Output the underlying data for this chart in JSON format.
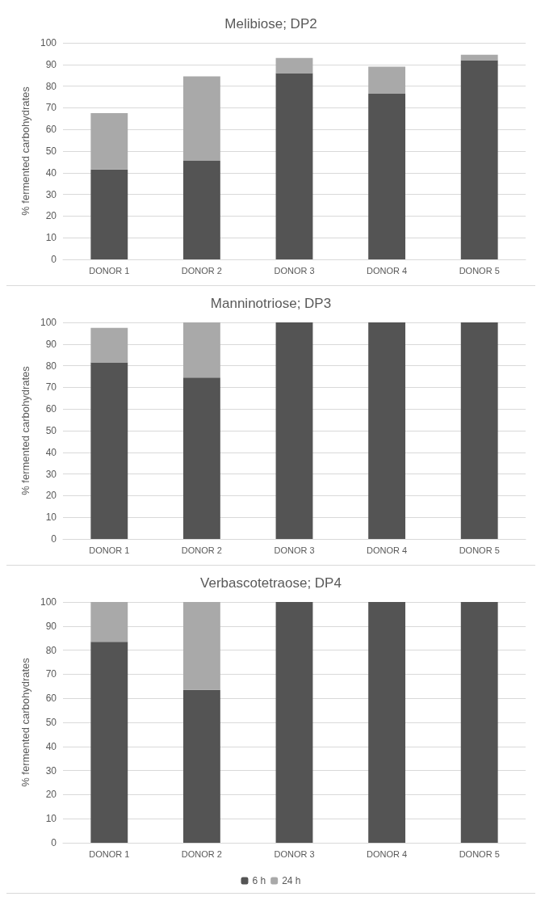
{
  "chart_data": [
    {
      "type": "bar",
      "title": "Melibiose; DP2",
      "ylabel": "% fermented carbohydrates",
      "categories": [
        "DONOR 1",
        "DONOR 2",
        "DONOR 3",
        "DONOR 4",
        "DONOR 5"
      ],
      "stacked": true,
      "ylim": [
        0,
        100
      ],
      "yticks": [
        0,
        10,
        20,
        30,
        40,
        50,
        60,
        70,
        80,
        90,
        100
      ],
      "grid": "y",
      "legend": false,
      "series": [
        {
          "color": "#545454",
          "values": [
            41.5,
            45.5,
            86,
            76.5,
            92
          ]
        },
        {
          "color": "#a9a9a9",
          "values": [
            26,
            39,
            7,
            12.5,
            2.5
          ]
        }
      ]
    },
    {
      "type": "bar",
      "title": "Manninotriose; DP3",
      "ylabel": "% fermented carbohydrates",
      "categories": [
        "DONOR 1",
        "DONOR 2",
        "DONOR 3",
        "DONOR 4",
        "DONOR 5"
      ],
      "stacked": true,
      "ylim": [
        0,
        100
      ],
      "yticks": [
        0,
        10,
        20,
        30,
        40,
        50,
        60,
        70,
        80,
        90,
        100
      ],
      "grid": "y",
      "legend": false,
      "series": [
        {
          "color": "#545454",
          "values": [
            81.5,
            74.5,
            100,
            100,
            100
          ]
        },
        {
          "color": "#a9a9a9",
          "values": [
            16,
            25.5,
            0,
            0,
            0
          ]
        }
      ]
    },
    {
      "type": "bar",
      "title": "Verbascotetraose; DP4",
      "ylabel": "% fermented carbohydrates",
      "categories": [
        "DONOR 1",
        "DONOR 2",
        "DONOR 3",
        "DONOR 4",
        "DONOR 5"
      ],
      "stacked": true,
      "ylim": [
        0,
        100
      ],
      "yticks": [
        0,
        10,
        20,
        30,
        40,
        50,
        60,
        70,
        80,
        90,
        100
      ],
      "grid": "y",
      "legend": "bottom",
      "series": [
        {
          "name": "6 h",
          "color": "#545454",
          "values": [
            83.5,
            63.5,
            100,
            100,
            100
          ]
        },
        {
          "name": "24 h",
          "color": "#a9a9a9",
          "values": [
            16.5,
            36.5,
            0,
            0,
            0
          ]
        }
      ]
    }
  ]
}
